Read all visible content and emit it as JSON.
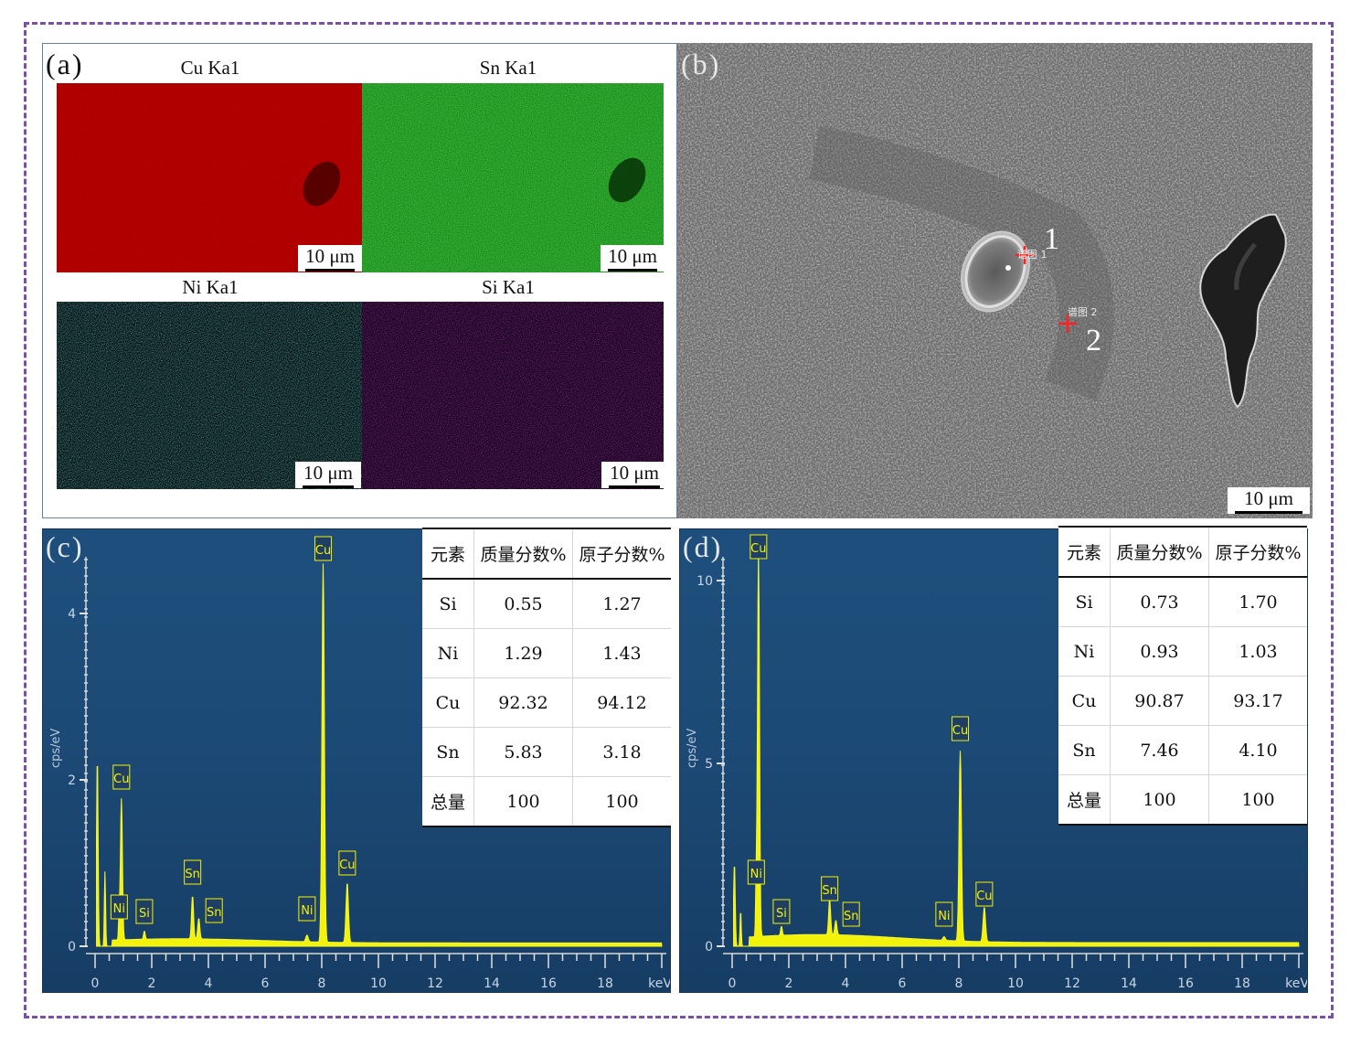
{
  "panels": {
    "a_label": "(a)",
    "b_label": "(b)",
    "c_label": "(c)",
    "d_label": "(d)"
  },
  "maps": [
    {
      "element": "Cu Ka1",
      "color": "#b00000",
      "scale": "10 μm"
    },
    {
      "element": "Sn Ka1",
      "color": "#1aa61a",
      "scale": "10 μm"
    },
    {
      "element": "Ni Ka1",
      "color": "#2fb6b6",
      "scale": "10 μm"
    },
    {
      "element": "Si Ka1",
      "color": "#8a1a8a",
      "scale": "10 μm"
    }
  ],
  "sem": {
    "scale": "10 μm",
    "point1": "1",
    "point2": "2",
    "marker1_label": "谱图 1",
    "marker2_label": "谱图 2"
  },
  "spectrum_c": {
    "y_title": "cps/eV",
    "y_ticks": [
      "0",
      "2",
      "4"
    ],
    "x_ticks": [
      "0",
      "2",
      "4",
      "6",
      "8",
      "10",
      "12",
      "14",
      "16",
      "18"
    ],
    "x_unit": "keV",
    "peak_labels": [
      "Cu",
      "Cu",
      "Ni",
      "Si",
      "Sn",
      "Sn",
      "Ni",
      "Cu"
    ]
  },
  "spectrum_d": {
    "y_title": "cps/eV",
    "y_ticks": [
      "0",
      "5",
      "10"
    ],
    "x_ticks": [
      "0",
      "2",
      "4",
      "6",
      "8",
      "10",
      "12",
      "14",
      "16",
      "18"
    ],
    "x_unit": "keV",
    "peak_labels": [
      "Cu",
      "Ni",
      "Si",
      "Sn",
      "Sn",
      "Ni",
      "Cu",
      "Cu"
    ]
  },
  "table_c": {
    "header": [
      "元素",
      "质量分数%",
      "原子分数%"
    ],
    "rows": [
      [
        "Si",
        "0.55",
        "1.27"
      ],
      [
        "Ni",
        "1.29",
        "1.43"
      ],
      [
        "Cu",
        "92.32",
        "94.12"
      ],
      [
        "Sn",
        "5.83",
        "3.18"
      ],
      [
        "总量",
        "100",
        "100"
      ]
    ]
  },
  "table_d": {
    "header": [
      "元素",
      "质量分数%",
      "原子分数%"
    ],
    "rows": [
      [
        "Si",
        "0.73",
        "1.70"
      ],
      [
        "Ni",
        "0.93",
        "1.03"
      ],
      [
        "Cu",
        "90.87",
        "93.17"
      ],
      [
        "Sn",
        "7.46",
        "4.10"
      ],
      [
        "总量",
        "100",
        "100"
      ]
    ]
  }
}
